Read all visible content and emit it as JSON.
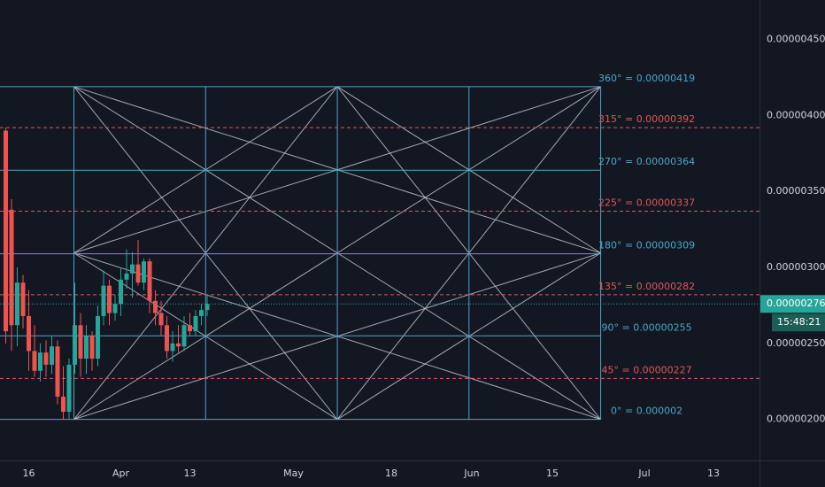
{
  "chart_data": {
    "type": "candlestick",
    "up_color": "#26a69a",
    "down_color": "#ef5350",
    "xlim": [
      11,
      143
    ],
    "xticks": [
      16,
      {
        "value": 32,
        "label": "Apr"
      },
      {
        "value": 44,
        "label": "13"
      },
      {
        "value": 62,
        "label": "May"
      },
      {
        "value": 79,
        "label": "18"
      },
      {
        "value": 93,
        "label": "Jun"
      },
      {
        "value": 107,
        "label": "15"
      },
      {
        "value": 123,
        "label": "Jul"
      },
      {
        "value": 135,
        "label": "13"
      }
    ],
    "ylim": [
      1.73e-06,
      4.76e-06
    ],
    "yticks": [
      {
        "value": 2e-06,
        "label": "0.00000200"
      },
      {
        "value": 2.5e-06,
        "label": "0.00000250"
      },
      {
        "value": 3e-06,
        "label": "0.00000300"
      },
      {
        "value": 3.5e-06,
        "label": "0.00000350"
      },
      {
        "value": 4e-06,
        "label": "0.00000400"
      },
      {
        "value": 4.5e-06,
        "label": "0.00000450"
      }
    ],
    "x": [
      12,
      13,
      14,
      15,
      16,
      17,
      18,
      19,
      20,
      21,
      22,
      23,
      24,
      25,
      26,
      27,
      28,
      29,
      30,
      31,
      32,
      33,
      34,
      35,
      36,
      37,
      38,
      39,
      40,
      41,
      42,
      43,
      44,
      45,
      46,
      47
    ],
    "open": [
      3.9e-06,
      3.38e-06,
      2.62e-06,
      2.9e-06,
      2.68e-06,
      2.45e-06,
      2.32e-06,
      2.44e-06,
      2.36e-06,
      2.48e-06,
      2.15e-06,
      2.05e-06,
      2.36e-06,
      2.62e-06,
      2.4e-06,
      2.55e-06,
      2.4e-06,
      2.68e-06,
      2.88e-06,
      2.7e-06,
      2.76e-06,
      2.92e-06,
      2.96e-06,
      3.02e-06,
      2.9e-06,
      3.04e-06,
      2.78e-06,
      2.7e-06,
      2.62e-06,
      2.45e-06,
      2.5e-06,
      2.48e-06,
      2.62e-06,
      2.58e-06,
      2.68e-06,
      2.72e-06
    ],
    "high": [
      3.92e-06,
      3.45e-06,
      3e-06,
      2.95e-06,
      2.85e-06,
      2.62e-06,
      2.5e-06,
      2.52e-06,
      2.55e-06,
      2.52e-06,
      2.35e-06,
      2.4e-06,
      2.9e-06,
      2.7e-06,
      2.62e-06,
      2.58e-06,
      2.75e-06,
      2.98e-06,
      2.92e-06,
      2.82e-06,
      3e-06,
      3.12e-06,
      3.1e-06,
      3.18e-06,
      3.06e-06,
      3.06e-06,
      2.85e-06,
      2.78e-06,
      2.68e-06,
      2.58e-06,
      2.62e-06,
      2.68e-06,
      2.7e-06,
      2.72e-06,
      2.76e-06,
      2.82e-06
    ],
    "low": [
      2.5e-06,
      2.45e-06,
      2.48e-06,
      2.6e-06,
      2.32e-06,
      2.28e-06,
      2.25e-06,
      2.28e-06,
      2.3e-06,
      2.1e-06,
      2e-06,
      2e-06,
      2.3e-06,
      2.28e-06,
      2.3e-06,
      2.32e-06,
      2.35e-06,
      2.62e-06,
      2.62e-06,
      2.65e-06,
      2.68e-06,
      2.86e-06,
      2.8e-06,
      2.88e-06,
      2.85e-06,
      2.7e-06,
      2.62e-06,
      2.55e-06,
      2.4e-06,
      2.38e-06,
      2.44e-06,
      2.45e-06,
      2.55e-06,
      2.55e-06,
      2.62e-06,
      2.68e-06
    ],
    "close": [
      2.58e-06,
      2.62e-06,
      2.9e-06,
      2.68e-06,
      2.45e-06,
      2.32e-06,
      2.44e-06,
      2.36e-06,
      2.48e-06,
      2.15e-06,
      2.05e-06,
      2.36e-06,
      2.62e-06,
      2.4e-06,
      2.55e-06,
      2.4e-06,
      2.68e-06,
      2.88e-06,
      2.7e-06,
      2.76e-06,
      2.92e-06,
      2.96e-06,
      3.02e-06,
      2.9e-06,
      3.04e-06,
      2.78e-06,
      2.7e-06,
      2.62e-06,
      2.45e-06,
      2.5e-06,
      2.48e-06,
      2.62e-06,
      2.58e-06,
      2.68e-06,
      2.72e-06,
      2.76e-06
    ],
    "last_price": {
      "value": 2.76e-06,
      "label": "0.00000276"
    },
    "countdown": "15:48:21",
    "gann_box": {
      "xlim": [
        23.85,
        115.4
      ],
      "levels": [
        {
          "value": 2e-06,
          "label": "0° = 0.000002",
          "color": "#4ba6c9",
          "dashed": false
        },
        {
          "value": 2.27e-06,
          "label": "45° = 0.00000227",
          "color": "#e05757",
          "dashed": true
        },
        {
          "value": 2.55e-06,
          "label": "90° = 0.00000255",
          "color": "#4ba6c9",
          "dashed": false
        },
        {
          "value": 2.82e-06,
          "label": "135° = 0.00000282",
          "color": "#e05757",
          "dashed": true
        },
        {
          "value": 3.09e-06,
          "label": "180° = 0.00000309",
          "color": "#4ba6c9",
          "dashed": false
        },
        {
          "value": 3.37e-06,
          "label": "225° = 0.00000337",
          "color": "#e05757",
          "dashed": true
        },
        {
          "value": 3.64e-06,
          "label": "270° = 0.00000364",
          "color": "#4ba6c9",
          "dashed": false
        },
        {
          "value": 3.92e-06,
          "label": "315° = 0.00000392",
          "color": "#e05757",
          "dashed": true
        },
        {
          "value": 4.19e-06,
          "label": "360° = 0.00000419",
          "color": "#4ba6c9",
          "dashed": false
        }
      ]
    }
  }
}
